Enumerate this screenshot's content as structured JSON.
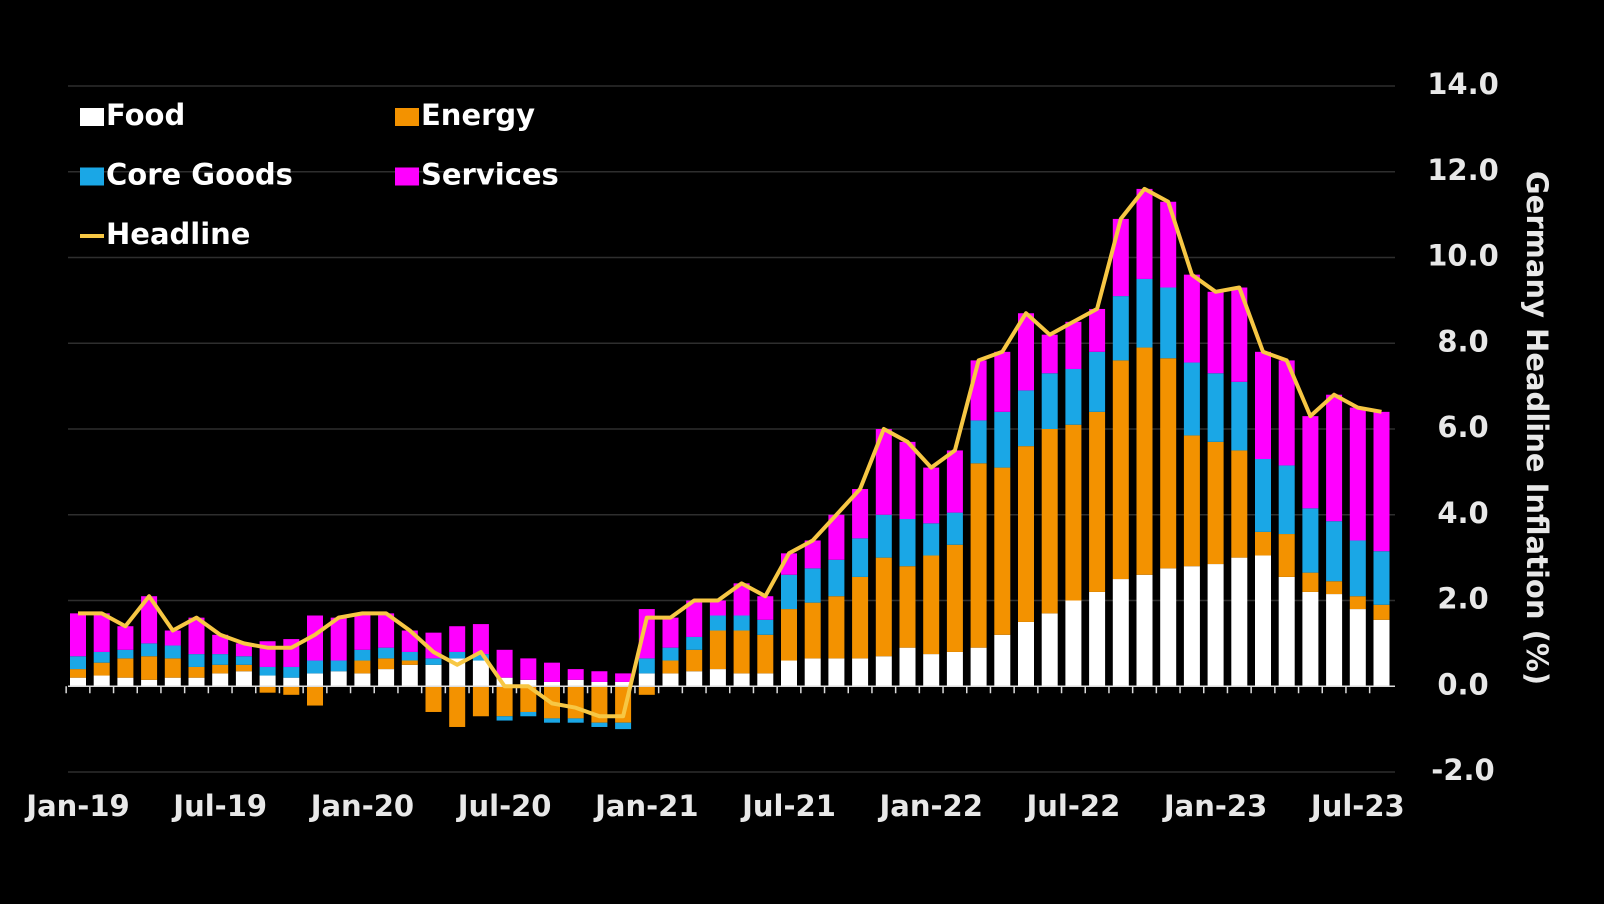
{
  "chart_data": {
    "type": "bar",
    "stacked": true,
    "y_axis_label": "Germany Headline Inflation (%)",
    "categories": [
      "Jan-19",
      null,
      null,
      null,
      null,
      null,
      "Jul-19",
      null,
      null,
      null,
      null,
      null,
      "Jan-20",
      null,
      null,
      null,
      null,
      null,
      "Jul-20",
      null,
      null,
      null,
      null,
      null,
      "Jan-21",
      null,
      null,
      null,
      null,
      null,
      "Jul-21",
      null,
      null,
      null,
      null,
      null,
      "Jan-22",
      null,
      null,
      null,
      null,
      null,
      "Jul-22",
      null,
      null,
      null,
      null,
      null,
      "Jan-23",
      null,
      null,
      null,
      null,
      null,
      "Jul-23",
      null
    ],
    "series": [
      {
        "name": "Food",
        "type": "bar",
        "color": "#ffffff",
        "values": [
          0.2,
          0.25,
          0.2,
          0.15,
          0.2,
          0.2,
          0.3,
          0.35,
          0.25,
          0.2,
          0.3,
          0.35,
          0.3,
          0.4,
          0.5,
          0.5,
          0.65,
          0.6,
          0.2,
          0.15,
          0.1,
          0.15,
          0.1,
          0.1,
          0.3,
          0.3,
          0.35,
          0.4,
          0.3,
          0.3,
          0.6,
          0.65,
          0.65,
          0.65,
          0.7,
          0.9,
          0.75,
          0.8,
          0.9,
          1.2,
          1.5,
          1.7,
          2.0,
          2.2,
          2.5,
          2.6,
          2.75,
          2.8,
          2.85,
          3.0,
          3.05,
          2.55,
          2.2,
          2.15,
          1.8,
          1.55
        ]
      },
      {
        "name": "Energy",
        "type": "bar",
        "color": "#f39200",
        "values": [
          0.2,
          0.3,
          0.45,
          0.55,
          0.45,
          0.25,
          0.2,
          0.15,
          -0.15,
          -0.2,
          -0.45,
          0.0,
          0.3,
          0.25,
          0.1,
          -0.6,
          -0.95,
          -0.7,
          -0.7,
          -0.6,
          -0.75,
          -0.75,
          -0.85,
          -0.85,
          -0.2,
          0.3,
          0.5,
          0.9,
          1.0,
          0.9,
          1.2,
          1.3,
          1.45,
          1.9,
          2.3,
          1.9,
          2.3,
          2.5,
          4.3,
          3.9,
          4.1,
          4.3,
          4.1,
          4.2,
          5.1,
          5.3,
          4.9,
          3.05,
          2.85,
          2.5,
          0.55,
          1.0,
          0.45,
          0.3,
          0.3,
          0.35
        ]
      },
      {
        "name": "Core Goods",
        "type": "bar",
        "color": "#1aa7e6",
        "values": [
          0.3,
          0.25,
          0.2,
          0.3,
          0.3,
          0.3,
          0.25,
          0.2,
          0.2,
          0.25,
          0.3,
          0.25,
          0.25,
          0.25,
          0.2,
          0.15,
          0.15,
          0.15,
          -0.1,
          -0.1,
          -0.1,
          -0.1,
          -0.1,
          -0.15,
          0.35,
          0.3,
          0.3,
          0.35,
          0.35,
          0.35,
          0.8,
          0.8,
          0.85,
          0.9,
          1.0,
          1.1,
          0.75,
          0.75,
          1.0,
          1.3,
          1.3,
          1.3,
          1.3,
          1.4,
          1.5,
          1.6,
          1.65,
          1.7,
          1.6,
          1.6,
          1.7,
          1.6,
          1.5,
          1.4,
          1.3,
          1.25
        ]
      },
      {
        "name": "Services",
        "type": "bar",
        "color": "#ff00ff",
        "values": [
          1.0,
          0.9,
          0.55,
          1.1,
          0.35,
          0.85,
          0.45,
          0.3,
          0.6,
          0.65,
          1.05,
          1.0,
          0.85,
          0.8,
          0.5,
          0.6,
          0.6,
          0.7,
          0.65,
          0.5,
          0.45,
          0.25,
          0.25,
          0.2,
          1.15,
          0.7,
          0.85,
          0.35,
          0.75,
          0.55,
          0.5,
          0.65,
          1.05,
          1.15,
          2.0,
          1.8,
          1.3,
          1.45,
          1.4,
          1.4,
          1.8,
          0.9,
          1.1,
          1.0,
          1.8,
          2.1,
          2.0,
          2.05,
          1.9,
          2.2,
          2.5,
          2.45,
          2.15,
          2.95,
          3.1,
          3.25
        ]
      },
      {
        "name": "Headline",
        "type": "line",
        "color": "#f7c744",
        "values": [
          1.7,
          1.7,
          1.4,
          2.1,
          1.3,
          1.6,
          1.2,
          1.0,
          0.9,
          0.9,
          1.2,
          1.6,
          1.7,
          1.7,
          1.3,
          0.8,
          0.5,
          0.8,
          0.0,
          0.0,
          -0.4,
          -0.5,
          -0.7,
          -0.7,
          1.6,
          1.6,
          2.0,
          2.0,
          2.4,
          2.1,
          3.1,
          3.4,
          4.0,
          4.6,
          6.0,
          5.7,
          5.1,
          5.5,
          7.6,
          7.8,
          8.7,
          8.2,
          8.5,
          8.8,
          10.9,
          11.6,
          11.3,
          9.6,
          9.2,
          9.3,
          7.8,
          7.6,
          6.3,
          6.8,
          6.5,
          6.4
        ]
      }
    ],
    "ylim": [
      -2,
      14
    ],
    "yticks": [
      {
        "value": -2,
        "label": "-2.0"
      },
      {
        "value": 0,
        "label": "0.0"
      },
      {
        "value": 2,
        "label": "2.0"
      },
      {
        "value": 4,
        "label": "4.0"
      },
      {
        "value": 6,
        "label": "6.0"
      },
      {
        "value": 8,
        "label": "8.0"
      },
      {
        "value": 10,
        "label": "10.0"
      },
      {
        "value": 12,
        "label": "12.0"
      },
      {
        "value": 14,
        "label": "14.0"
      }
    ],
    "grid": true,
    "legend": "top-left"
  }
}
